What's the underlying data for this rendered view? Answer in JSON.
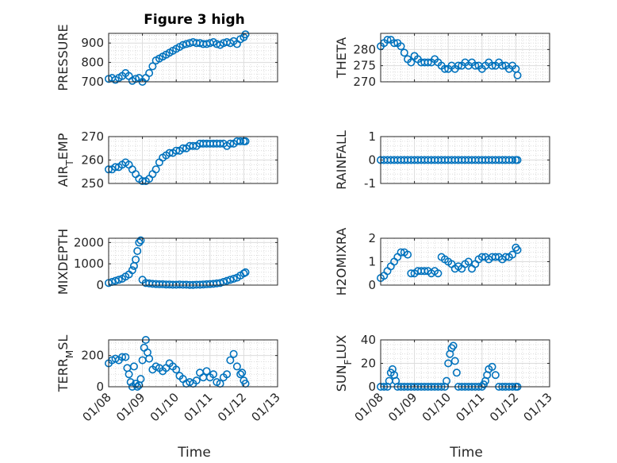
{
  "figure": {
    "title": "Figure 3 high",
    "marker_color": "#0072BD"
  },
  "chart_data": [
    {
      "type": "scatter",
      "ylabel": "PRESSURE",
      "ylim": [
        700,
        950
      ],
      "yticks": [
        700,
        800,
        900
      ],
      "xlim": [
        0,
        5
      ],
      "xticks": [
        "01/08",
        "01/09",
        "01/10",
        "01/11",
        "01/12",
        "01/13"
      ],
      "grid": true,
      "series": [
        {
          "x": [
            0.0,
            0.1,
            0.2,
            0.3,
            0.4,
            0.5,
            0.6,
            0.7,
            0.8,
            0.9,
            1.0,
            1.1,
            1.2,
            1.3,
            1.4,
            1.5,
            1.6,
            1.7,
            1.8,
            1.9,
            2.0,
            2.1,
            2.2,
            2.3,
            2.4,
            2.5,
            2.6,
            2.7,
            2.8,
            2.9,
            3.0,
            3.1,
            3.2,
            3.3,
            3.4,
            3.5,
            3.6,
            3.7,
            3.8,
            3.9,
            4.0,
            4.05
          ],
          "y": [
            715,
            720,
            710,
            720,
            730,
            745,
            730,
            705,
            715,
            720,
            700,
            720,
            745,
            780,
            810,
            820,
            830,
            840,
            850,
            860,
            870,
            880,
            890,
            895,
            900,
            905,
            900,
            900,
            895,
            895,
            900,
            905,
            895,
            890,
            900,
            905,
            900,
            910,
            895,
            920,
            930,
            945
          ]
        }
      ]
    },
    {
      "type": "scatter",
      "ylabel": "THETA",
      "ylim": [
        270,
        285
      ],
      "yticks": [
        270,
        275,
        280
      ],
      "xlim": [
        0,
        5
      ],
      "xticks": [
        "01/08",
        "01/09",
        "01/10",
        "01/11",
        "01/12",
        "01/13"
      ],
      "grid": true,
      "series": [
        {
          "x": [
            0.0,
            0.1,
            0.2,
            0.3,
            0.4,
            0.5,
            0.6,
            0.7,
            0.8,
            0.9,
            1.0,
            1.1,
            1.2,
            1.3,
            1.4,
            1.5,
            1.6,
            1.7,
            1.8,
            1.9,
            2.0,
            2.1,
            2.2,
            2.3,
            2.4,
            2.5,
            2.6,
            2.7,
            2.8,
            2.9,
            3.0,
            3.1,
            3.2,
            3.3,
            3.4,
            3.5,
            3.6,
            3.7,
            3.8,
            3.9,
            4.0,
            4.05
          ],
          "y": [
            281,
            282,
            283,
            283,
            282,
            282,
            281,
            279,
            277,
            276,
            278,
            277,
            276,
            276,
            276,
            276,
            277,
            276,
            275,
            274,
            274,
            275,
            274,
            275,
            275,
            276,
            275,
            276,
            275,
            275,
            274,
            275,
            276,
            275,
            275,
            276,
            275,
            275,
            274,
            275,
            274,
            272
          ]
        }
      ]
    },
    {
      "type": "scatter",
      "ylabel": "AIR",
      "ylabel_sub": "T",
      "ylabel_tail": "EMP",
      "ylim": [
        250,
        270
      ],
      "yticks": [
        250,
        260,
        270
      ],
      "xlim": [
        0,
        5
      ],
      "xticks": [
        "01/08",
        "01/09",
        "01/10",
        "01/11",
        "01/12",
        "01/13"
      ],
      "grid": true,
      "series": [
        {
          "x": [
            0.0,
            0.1,
            0.2,
            0.3,
            0.4,
            0.5,
            0.6,
            0.7,
            0.8,
            0.9,
            1.0,
            1.1,
            1.2,
            1.3,
            1.4,
            1.5,
            1.6,
            1.7,
            1.8,
            1.9,
            2.0,
            2.1,
            2.2,
            2.3,
            2.4,
            2.5,
            2.6,
            2.7,
            2.8,
            2.9,
            3.0,
            3.1,
            3.2,
            3.3,
            3.4,
            3.5,
            3.6,
            3.7,
            3.8,
            3.9,
            4.0,
            4.05
          ],
          "y": [
            256,
            256,
            257,
            257,
            258,
            259,
            258,
            256,
            254,
            252,
            251,
            251,
            252,
            254,
            256,
            259,
            261,
            262,
            263,
            263,
            264,
            264,
            265,
            265,
            266,
            266,
            266,
            267,
            267,
            267,
            267,
            267,
            267,
            267,
            267,
            266,
            267,
            267,
            268,
            268,
            268,
            268
          ]
        }
      ]
    },
    {
      "type": "scatter",
      "ylabel": "RAINFALL",
      "ylim": [
        -1,
        1
      ],
      "yticks": [
        -1,
        0,
        1
      ],
      "xlim": [
        0,
        5
      ],
      "xticks": [
        "01/08",
        "01/09",
        "01/10",
        "01/11",
        "01/12",
        "01/13"
      ],
      "grid": true,
      "series": [
        {
          "x": [
            0.0,
            0.1,
            0.2,
            0.3,
            0.4,
            0.5,
            0.6,
            0.7,
            0.8,
            0.9,
            1.0,
            1.1,
            1.2,
            1.3,
            1.4,
            1.5,
            1.6,
            1.7,
            1.8,
            1.9,
            2.0,
            2.1,
            2.2,
            2.3,
            2.4,
            2.5,
            2.6,
            2.7,
            2.8,
            2.9,
            3.0,
            3.1,
            3.2,
            3.3,
            3.4,
            3.5,
            3.6,
            3.7,
            3.8,
            3.9,
            4.0,
            4.05
          ],
          "y": [
            0,
            0,
            0,
            0,
            0,
            0,
            0,
            0,
            0,
            0,
            0,
            0,
            0,
            0,
            0,
            0,
            0,
            0,
            0,
            0,
            0,
            0,
            0,
            0,
            0,
            0,
            0,
            0,
            0,
            0,
            0,
            0,
            0,
            0,
            0,
            0,
            0,
            0,
            0,
            0,
            0,
            0
          ]
        }
      ]
    },
    {
      "type": "scatter",
      "ylabel": "MIXDEPTH",
      "ylim": [
        0,
        2200
      ],
      "yticks": [
        0,
        1000,
        2000
      ],
      "xlim": [
        0,
        5
      ],
      "xticks": [
        "01/08",
        "01/09",
        "01/10",
        "01/11",
        "01/12",
        "01/13"
      ],
      "grid": true,
      "series": [
        {
          "x": [
            0.0,
            0.1,
            0.2,
            0.3,
            0.4,
            0.5,
            0.6,
            0.7,
            0.75,
            0.8,
            0.85,
            0.9,
            0.95,
            1.0,
            1.1,
            1.2,
            1.3,
            1.4,
            1.5,
            1.6,
            1.7,
            1.8,
            1.9,
            2.0,
            2.1,
            2.2,
            2.3,
            2.4,
            2.5,
            2.6,
            2.7,
            2.8,
            2.9,
            3.0,
            3.1,
            3.2,
            3.3,
            3.4,
            3.5,
            3.6,
            3.7,
            3.8,
            3.9,
            4.0,
            4.05
          ],
          "y": [
            100,
            150,
            200,
            250,
            300,
            400,
            500,
            700,
            900,
            1200,
            1600,
            2000,
            2100,
            250,
            100,
            80,
            60,
            50,
            40,
            40,
            30,
            30,
            20,
            20,
            30,
            20,
            20,
            10,
            10,
            20,
            20,
            30,
            40,
            50,
            60,
            80,
            100,
            150,
            200,
            250,
            300,
            350,
            450,
            550,
            600
          ]
        }
      ]
    },
    {
      "type": "scatter",
      "ylabel": "H2OMIXRA",
      "ylim": [
        0,
        2
      ],
      "yticks": [
        0,
        1,
        2
      ],
      "xlim": [
        0,
        5
      ],
      "xticks": [
        "01/08",
        "01/09",
        "01/10",
        "01/11",
        "01/12",
        "01/13"
      ],
      "grid": true,
      "series": [
        {
          "x": [
            0.0,
            0.1,
            0.2,
            0.3,
            0.4,
            0.5,
            0.6,
            0.7,
            0.8,
            0.9,
            1.0,
            1.1,
            1.2,
            1.3,
            1.4,
            1.5,
            1.6,
            1.7,
            1.8,
            1.9,
            2.0,
            2.1,
            2.2,
            2.3,
            2.4,
            2.5,
            2.6,
            2.7,
            2.8,
            2.9,
            3.0,
            3.1,
            3.2,
            3.3,
            3.4,
            3.5,
            3.6,
            3.7,
            3.8,
            3.9,
            4.0,
            4.05
          ],
          "y": [
            0.3,
            0.4,
            0.6,
            0.8,
            1.0,
            1.2,
            1.4,
            1.4,
            1.3,
            0.5,
            0.5,
            0.6,
            0.6,
            0.6,
            0.6,
            0.5,
            0.6,
            0.5,
            1.2,
            1.1,
            1.0,
            0.9,
            0.7,
            0.8,
            0.7,
            0.9,
            1.0,
            0.7,
            0.9,
            1.1,
            1.2,
            1.2,
            1.1,
            1.2,
            1.2,
            1.2,
            1.1,
            1.2,
            1.2,
            1.3,
            1.6,
            1.5
          ]
        }
      ]
    },
    {
      "type": "scatter",
      "ylabel": "TERR",
      "ylabel_sub": "M",
      "ylabel_tail": "SL",
      "ylim": [
        0,
        300
      ],
      "yticks": [
        0,
        200
      ],
      "xlim": [
        0,
        5
      ],
      "xticks": [
        "01/08",
        "01/09",
        "01/10",
        "01/11",
        "01/12",
        "01/13"
      ],
      "grid": true,
      "series": [
        {
          "x": [
            0.0,
            0.1,
            0.2,
            0.3,
            0.4,
            0.5,
            0.55,
            0.6,
            0.65,
            0.7,
            0.75,
            0.8,
            0.85,
            0.9,
            0.95,
            1.0,
            1.05,
            1.1,
            1.15,
            1.2,
            1.3,
            1.4,
            1.5,
            1.6,
            1.7,
            1.8,
            1.9,
            2.0,
            2.1,
            2.2,
            2.3,
            2.4,
            2.5,
            2.6,
            2.7,
            2.8,
            2.9,
            3.0,
            3.1,
            3.2,
            3.3,
            3.4,
            3.5,
            3.6,
            3.7,
            3.8,
            3.9,
            3.95,
            4.0,
            4.05
          ],
          "y": [
            150,
            170,
            180,
            170,
            190,
            190,
            120,
            80,
            30,
            0,
            130,
            20,
            0,
            10,
            50,
            170,
            250,
            300,
            220,
            180,
            110,
            130,
            120,
            100,
            120,
            150,
            130,
            110,
            70,
            50,
            20,
            30,
            20,
            40,
            90,
            60,
            100,
            60,
            80,
            30,
            20,
            60,
            80,
            170,
            210,
            130,
            80,
            90,
            40,
            20
          ]
        }
      ]
    },
    {
      "type": "scatter",
      "ylabel": "SUN",
      "ylabel_sub": "F",
      "ylabel_tail": "LUX",
      "ylim": [
        0,
        40
      ],
      "yticks": [
        0,
        20,
        40
      ],
      "xlim": [
        0,
        5
      ],
      "xticks": [
        "01/08",
        "01/09",
        "01/10",
        "01/11",
        "01/12",
        "01/13"
      ],
      "grid": true,
      "series": [
        {
          "x": [
            0.0,
            0.1,
            0.2,
            0.25,
            0.3,
            0.35,
            0.4,
            0.45,
            0.5,
            0.6,
            0.7,
            0.8,
            0.9,
            1.0,
            1.1,
            1.2,
            1.3,
            1.4,
            1.5,
            1.6,
            1.7,
            1.8,
            1.9,
            1.95,
            2.0,
            2.05,
            2.1,
            2.15,
            2.2,
            2.25,
            2.3,
            2.4,
            2.5,
            2.6,
            2.7,
            2.8,
            2.9,
            3.0,
            3.05,
            3.1,
            3.15,
            3.2,
            3.3,
            3.4,
            3.5,
            3.6,
            3.7,
            3.8,
            3.9,
            4.0,
            4.05
          ],
          "y": [
            0,
            0,
            0,
            5,
            12,
            15,
            10,
            5,
            0,
            0,
            0,
            0,
            0,
            0,
            0,
            0,
            0,
            0,
            0,
            0,
            0,
            0,
            0,
            5,
            20,
            28,
            33,
            35,
            22,
            12,
            0,
            0,
            0,
            0,
            0,
            0,
            0,
            0,
            2,
            5,
            10,
            15,
            17,
            10,
            0,
            0,
            0,
            0,
            0,
            0,
            0
          ]
        }
      ]
    }
  ],
  "x_axis_label": "Time"
}
